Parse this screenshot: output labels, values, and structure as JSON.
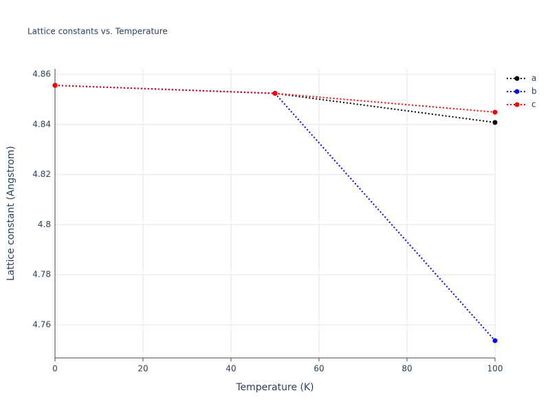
{
  "chart_data": {
    "type": "line",
    "title": "Lattice constants vs. Temperature",
    "x_label": "Temperature (K)",
    "y_label": "Lattice constant (Angstrom)",
    "x": [
      0,
      50,
      100
    ],
    "series": [
      {
        "name": "a",
        "color": "#000000",
        "values": [
          4.8556,
          4.8524,
          4.8408
        ]
      },
      {
        "name": "b",
        "color": "#0000ff",
        "values": [
          4.8556,
          4.8524,
          4.7537
        ]
      },
      {
        "name": "c",
        "color": "#ff0000",
        "values": [
          4.8556,
          4.8524,
          4.8449
        ]
      }
    ],
    "xlim": [
      0,
      100
    ],
    "xticks": [
      0,
      20,
      40,
      60,
      80,
      100
    ],
    "ylim": [
      4.7468,
      4.8622
    ],
    "yticks": [
      4.76,
      4.78,
      4.8,
      4.82,
      4.84,
      4.86
    ],
    "grid": true,
    "legend": "top-right"
  }
}
